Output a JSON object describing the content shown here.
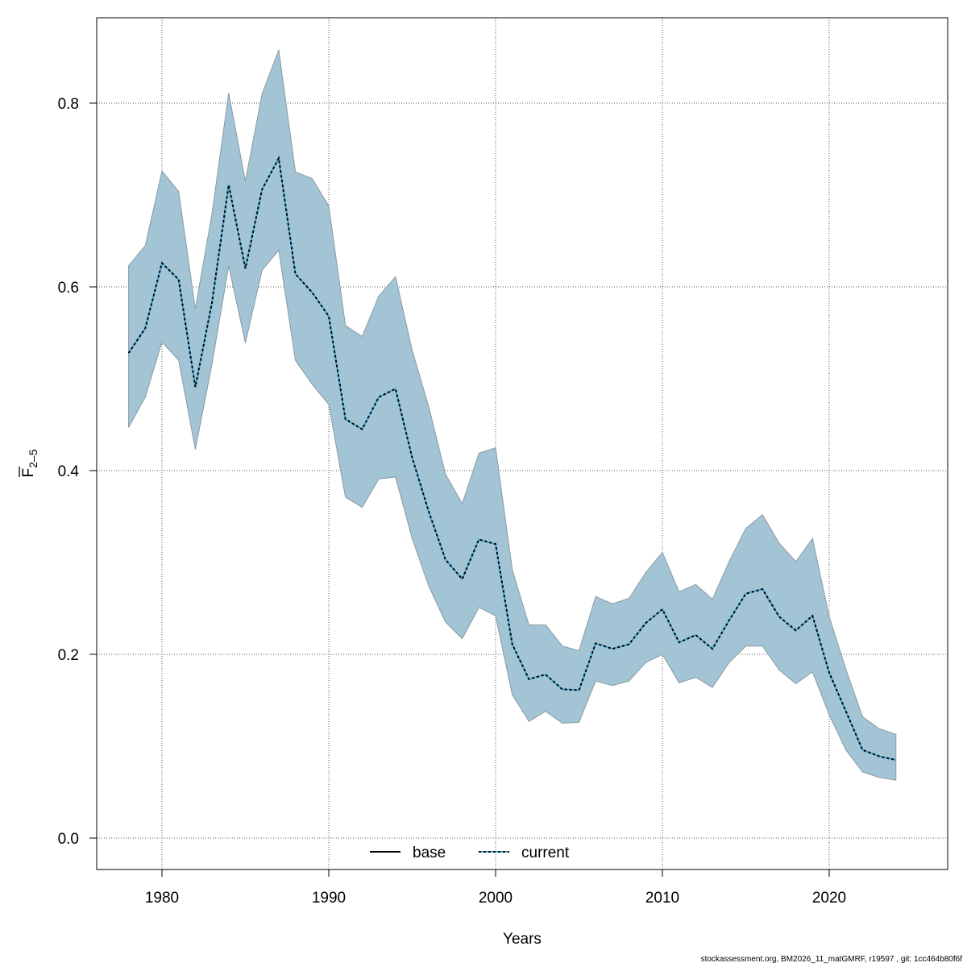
{
  "chart_data": {
    "type": "line",
    "title": "",
    "xlabel": "Years",
    "ylabel": "F",
    "ylabel_subscript": "2–5",
    "xlim": [
      1976,
      2027
    ],
    "ylim": [
      -0.035,
      0.89
    ],
    "x_ticks": [
      1980,
      1990,
      2000,
      2010,
      2020
    ],
    "y_ticks": [
      "0.0",
      "0.2",
      "0.4",
      "0.6",
      "0.8"
    ],
    "grid": true,
    "legend_position": "bottom",
    "colors": {
      "band": "#a3c4d5",
      "band_edge": "#8a9aa3",
      "base": "#000000",
      "current": "#3fa9d8"
    },
    "x": [
      1978,
      1979,
      1980,
      1981,
      1982,
      1983,
      1984,
      1985,
      1986,
      1987,
      1988,
      1989,
      1990,
      1991,
      1992,
      1993,
      1994,
      1995,
      1996,
      1997,
      1998,
      1999,
      2000,
      2001,
      2002,
      2003,
      2004,
      2005,
      2006,
      2007,
      2008,
      2009,
      2010,
      2011,
      2012,
      2013,
      2014,
      2015,
      2016,
      2017,
      2018,
      2019,
      2020,
      2021,
      2022,
      2023,
      2024
    ],
    "series": [
      {
        "name": "base",
        "style": "solid",
        "values": [
          0.528,
          0.555,
          0.626,
          0.608,
          0.491,
          0.583,
          0.711,
          0.62,
          0.706,
          0.74,
          0.614,
          0.594,
          0.568,
          0.456,
          0.445,
          0.48,
          0.489,
          0.414,
          0.355,
          0.303,
          0.282,
          0.325,
          0.32,
          0.211,
          0.173,
          0.178,
          0.162,
          0.161,
          0.212,
          0.206,
          0.211,
          0.234,
          0.249,
          0.213,
          0.221,
          0.206,
          0.237,
          0.266,
          0.271,
          0.241,
          0.226,
          0.242,
          0.18,
          0.138,
          0.096,
          0.089,
          0.085
        ]
      },
      {
        "name": "current",
        "style": "dotted",
        "values": [
          0.528,
          0.555,
          0.626,
          0.608,
          0.491,
          0.583,
          0.711,
          0.62,
          0.706,
          0.74,
          0.614,
          0.594,
          0.568,
          0.456,
          0.445,
          0.48,
          0.489,
          0.414,
          0.355,
          0.303,
          0.282,
          0.325,
          0.32,
          0.211,
          0.173,
          0.178,
          0.162,
          0.161,
          0.212,
          0.206,
          0.211,
          0.234,
          0.249,
          0.213,
          0.221,
          0.206,
          0.237,
          0.266,
          0.271,
          0.241,
          0.226,
          0.242,
          0.18,
          0.138,
          0.096,
          0.089,
          0.085
        ]
      }
    ],
    "band_lower": [
      0.447,
      0.48,
      0.54,
      0.52,
      0.423,
      0.516,
      0.623,
      0.539,
      0.618,
      0.64,
      0.52,
      0.494,
      0.472,
      0.371,
      0.36,
      0.391,
      0.393,
      0.326,
      0.274,
      0.235,
      0.217,
      0.251,
      0.242,
      0.156,
      0.127,
      0.138,
      0.125,
      0.126,
      0.171,
      0.166,
      0.171,
      0.191,
      0.2,
      0.169,
      0.175,
      0.164,
      0.191,
      0.209,
      0.209,
      0.183,
      0.168,
      0.181,
      0.134,
      0.096,
      0.072,
      0.066,
      0.063
    ],
    "band_upper": [
      0.623,
      0.645,
      0.726,
      0.704,
      0.576,
      0.68,
      0.811,
      0.715,
      0.81,
      0.858,
      0.725,
      0.718,
      0.688,
      0.558,
      0.546,
      0.59,
      0.611,
      0.531,
      0.469,
      0.396,
      0.364,
      0.419,
      0.425,
      0.292,
      0.232,
      0.232,
      0.209,
      0.204,
      0.263,
      0.255,
      0.261,
      0.289,
      0.311,
      0.268,
      0.276,
      0.26,
      0.301,
      0.337,
      0.352,
      0.321,
      0.301,
      0.326,
      0.241,
      0.184,
      0.132,
      0.119,
      0.113
    ]
  },
  "footer": "stockassessment.org, BM2026_11_matGMRF, r19597 , git: 1cc464b80f6f"
}
